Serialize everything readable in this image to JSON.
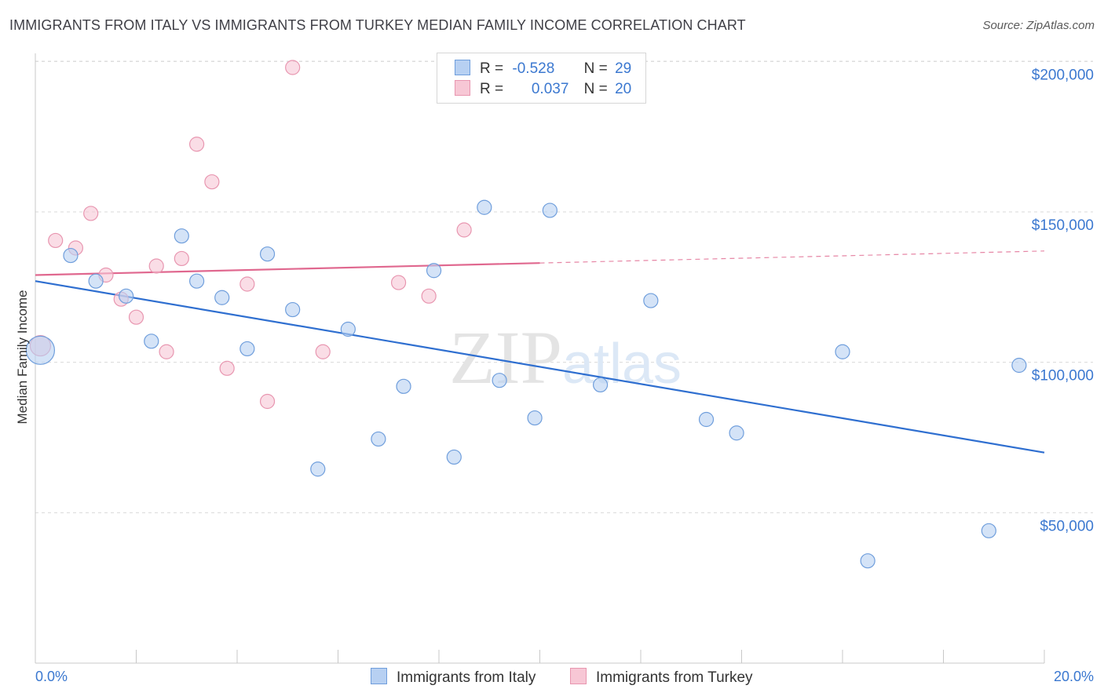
{
  "header": {
    "title": "IMMIGRANTS FROM ITALY VS IMMIGRANTS FROM TURKEY MEDIAN FAMILY INCOME CORRELATION CHART",
    "source": "Source: ZipAtlas.com"
  },
  "colors": {
    "italy_fill": "#b7d0f2",
    "italy_stroke": "#6f9edc",
    "italy_line": "#2f6fd0",
    "turkey_fill": "#f7c7d5",
    "turkey_stroke": "#e896b0",
    "turkey_line": "#e0688f",
    "axis_text": "#3b78d0",
    "grid": "#d9d9d9"
  },
  "legend": {
    "italy": {
      "r_label": "R =",
      "r_value": "-0.528",
      "n_label": "N =",
      "n_value": "29"
    },
    "turkey": {
      "r_label": "R =",
      "r_value": "0.037",
      "n_label": "N =",
      "n_value": "20"
    }
  },
  "chart_data": {
    "type": "scatter",
    "title": "IMMIGRANTS FROM ITALY VS IMMIGRANTS FROM TURKEY MEDIAN FAMILY INCOME CORRELATION CHART",
    "ylabel": "Median Family Income",
    "xlim": [
      0,
      20
    ],
    "ylim": [
      0,
      210000
    ],
    "x_tick_labels": [
      "0.0%",
      "20.0%"
    ],
    "y_ticks": [
      50000,
      100000,
      150000,
      200000
    ],
    "y_tick_labels": [
      "$50,000",
      "$100,000",
      "$150,000",
      "$200,000"
    ],
    "grid": "horizontal dashed",
    "watermark": "ZIPatlas",
    "series": [
      {
        "name": "Immigrants from Italy",
        "points": [
          [
            0.1,
            104000,
            18
          ],
          [
            0.7,
            135500,
            9
          ],
          [
            1.2,
            127000,
            9
          ],
          [
            1.8,
            122000,
            9
          ],
          [
            2.3,
            107000,
            9
          ],
          [
            2.9,
            142000,
            9
          ],
          [
            3.2,
            127000,
            9
          ],
          [
            3.7,
            121500,
            9
          ],
          [
            4.2,
            104500,
            9
          ],
          [
            4.6,
            136000,
            9
          ],
          [
            5.1,
            117500,
            9
          ],
          [
            5.6,
            64500,
            9
          ],
          [
            6.2,
            111000,
            9
          ],
          [
            6.8,
            74500,
            9
          ],
          [
            7.3,
            92000,
            9
          ],
          [
            7.9,
            130500,
            9
          ],
          [
            8.3,
            68500,
            9
          ],
          [
            8.9,
            151500,
            9
          ],
          [
            9.2,
            94000,
            9
          ],
          [
            9.9,
            81500,
            9
          ],
          [
            10.2,
            150500,
            9
          ],
          [
            11.2,
            92500,
            9
          ],
          [
            12.2,
            120500,
            9
          ],
          [
            13.3,
            81000,
            9
          ],
          [
            13.9,
            76500,
            9
          ],
          [
            16.0,
            103500,
            9
          ],
          [
            16.5,
            34000,
            9
          ],
          [
            18.9,
            44000,
            9
          ],
          [
            19.5,
            99000,
            9
          ]
        ],
        "trend": {
          "x": [
            0.0,
            20.0
          ],
          "y": [
            127000,
            70000
          ],
          "style": "solid"
        }
      },
      {
        "name": "Immigrants from Turkey",
        "points": [
          [
            0.1,
            105500,
            13
          ],
          [
            0.4,
            140500,
            9
          ],
          [
            0.8,
            138000,
            9
          ],
          [
            1.1,
            149500,
            9
          ],
          [
            1.4,
            129000,
            9
          ],
          [
            1.7,
            121000,
            9
          ],
          [
            2.0,
            115000,
            9
          ],
          [
            2.4,
            132000,
            9
          ],
          [
            2.6,
            103500,
            9
          ],
          [
            2.9,
            134500,
            9
          ],
          [
            3.2,
            172500,
            9
          ],
          [
            3.5,
            160000,
            9
          ],
          [
            3.8,
            98000,
            9
          ],
          [
            4.2,
            126000,
            9
          ],
          [
            4.6,
            87000,
            9
          ],
          [
            5.1,
            198000,
            9
          ],
          [
            5.7,
            103500,
            9
          ],
          [
            7.2,
            126500,
            9
          ],
          [
            7.8,
            122000,
            9
          ],
          [
            8.5,
            144000,
            9
          ]
        ],
        "trend": {
          "x": [
            0.0,
            10.0
          ],
          "y": [
            129000,
            133000
          ],
          "style": "solid",
          "extension": {
            "x": [
              10.0,
              20.0
            ],
            "y": [
              133000,
              137000
            ],
            "style": "dashed"
          }
        }
      }
    ]
  },
  "bottom_legend": {
    "italy_label": "Immigrants from Italy",
    "turkey_label": "Immigrants from Turkey"
  }
}
